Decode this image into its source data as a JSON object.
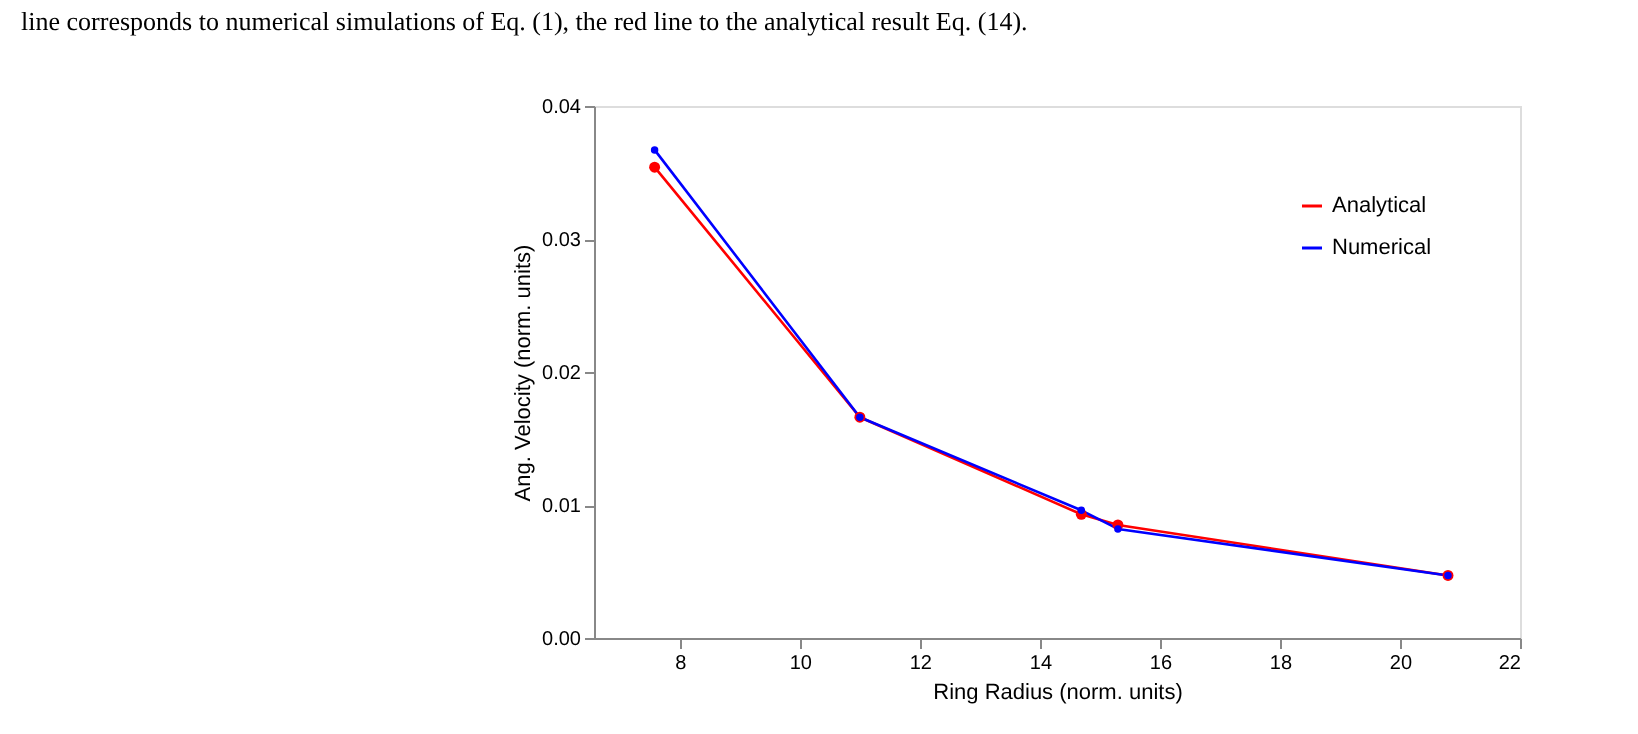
{
  "chart_data": {
    "type": "line",
    "xlabel": "Ring Radius (norm. units)",
    "ylabel": "Ang. Velocity (norm. units)",
    "annotations": [
      "line corresponds to numerical simulations of Eq. (1), the red line to the analytical result Eq. (14)."
    ],
    "x": [
      7.58,
      11.0,
      14.69,
      15.3,
      20.8
    ],
    "series": [
      {
        "name": "Analytical",
        "color": "#ff0000",
        "values": [
          0.0354,
          0.0166,
          0.0093,
          0.0085,
          0.0047
        ]
      },
      {
        "name": "Numerical",
        "color": "#0000ff",
        "values": [
          0.0367,
          0.0166,
          0.0096,
          0.0082,
          0.0047
        ]
      }
    ],
    "xlim": [
      6.57,
      22
    ],
    "ylim": [
      0,
      0.04
    ],
    "xticks": [
      8,
      10,
      12,
      14,
      16,
      18,
      20,
      22
    ],
    "yticks": [
      {
        "value": 0,
        "label": "0.00"
      },
      {
        "value": 0.01,
        "label": "0.01"
      },
      {
        "value": 0.02,
        "label": "0.02"
      },
      {
        "value": 0.03,
        "label": "0.03"
      },
      {
        "value": 0.04,
        "label": "0.04"
      }
    ],
    "grid": false,
    "legend": "top right",
    "marker": "circle",
    "line_style": "solid"
  }
}
